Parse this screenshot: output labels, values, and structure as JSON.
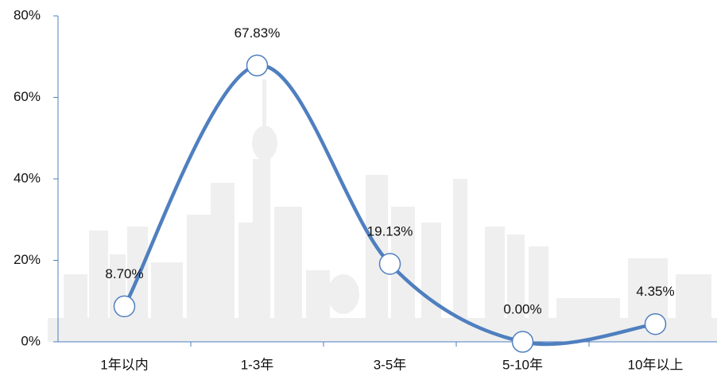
{
  "chart_data": {
    "type": "line",
    "smooth": true,
    "categories": [
      "1年以内",
      "1-3年",
      "3-5年",
      "5-10年",
      "10年以上"
    ],
    "values": [
      8.7,
      67.83,
      19.13,
      0.0,
      4.35
    ],
    "value_labels": [
      "8.70%",
      "67.83%",
      "19.13%",
      "0.00%",
      "4.35%"
    ],
    "color": "#4f7fbf",
    "markers": true,
    "ylim": [
      0,
      80
    ],
    "yticks": [
      {
        "value": 0,
        "label": "0%"
      },
      {
        "value": 20,
        "label": "20%"
      },
      {
        "value": 40,
        "label": "40%"
      },
      {
        "value": 60,
        "label": "60%"
      },
      {
        "value": 80,
        "label": "80%"
      }
    ],
    "grid": false
  }
}
